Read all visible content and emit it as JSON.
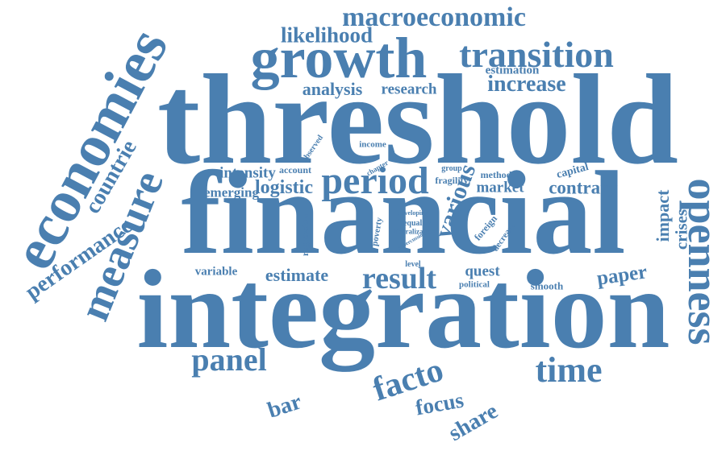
{
  "accent_color": "#4a7fb0",
  "background_color": "#ffffff",
  "words": [
    "threshold",
    "financial",
    "integration",
    "growth",
    "economies",
    "transition",
    "macroeconomic",
    "likelihood",
    "analysis",
    "research",
    "increase",
    "estimation",
    "measure",
    "countrie",
    "performance",
    "openness",
    "impact",
    "crises",
    "capital",
    "contrary",
    "method",
    "market",
    "period",
    "logistic",
    "intensity",
    "account",
    "emerging",
    "observed",
    "income",
    "chapter",
    "group",
    "fragility",
    "various",
    "foreign",
    "decrease",
    "regression",
    "poverty",
    "developing",
    "inequality",
    "liberalization",
    "repercussion",
    "variable",
    "estimate",
    "result",
    "level",
    "quest",
    "political",
    "smooth",
    "paper",
    "panel",
    "facto",
    "time",
    "focus",
    "share",
    "bar"
  ]
}
